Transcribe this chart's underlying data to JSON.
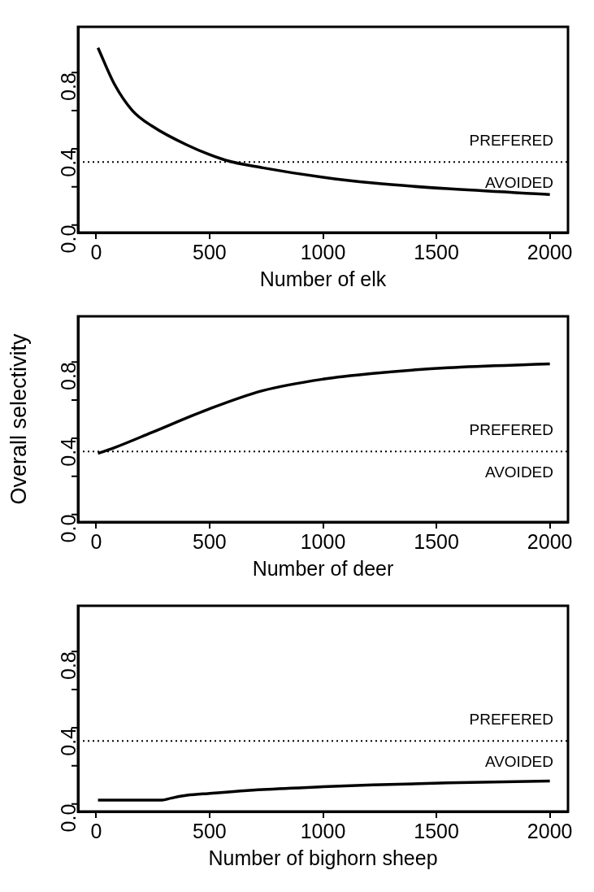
{
  "chart_data": [
    {
      "type": "line",
      "xlabel": "Number of elk",
      "x": [
        8,
        80,
        160,
        245,
        400,
        570,
        735,
        1000,
        1220,
        1550,
        2000
      ],
      "series": [
        {
          "color": "#000000",
          "values": [
            0.93,
            0.74,
            0.6,
            0.52,
            0.42,
            0.34,
            0.3,
            0.25,
            0.22,
            0.19,
            0.16
          ]
        }
      ],
      "xlim": [
        -80,
        2080
      ],
      "ylim": [
        -0.04,
        1.04
      ],
      "xticks": [
        0,
        500,
        1000,
        1500,
        2000
      ],
      "yticks": [
        {
          "value": 0,
          "label": "0.0"
        },
        {
          "value": 0.2,
          "label": null
        },
        {
          "value": 0.4,
          "label": "0.4"
        },
        {
          "value": 0.6,
          "label": null
        },
        {
          "value": 0.8,
          "label": "0.8"
        }
      ],
      "ref_lines": [
        {
          "axis": "y",
          "value": 0.33,
          "line_style": "dotted",
          "color": "#000000"
        }
      ],
      "annotations": [
        "PREFERED",
        "AVOIDED"
      ],
      "marker": "none",
      "grid": false,
      "legend": false
    },
    {
      "type": "line",
      "xlabel": "Number of deer",
      "ylabel": "Overall selectivity",
      "x": [
        8,
        80,
        245,
        490,
        735,
        1000,
        1220,
        1550,
        2000
      ],
      "series": [
        {
          "color": "#000000",
          "values": [
            0.32,
            0.35,
            0.43,
            0.55,
            0.65,
            0.71,
            0.74,
            0.77,
            0.79
          ]
        }
      ],
      "xlim": [
        -80,
        2080
      ],
      "ylim": [
        -0.04,
        1.04
      ],
      "xticks": [
        0,
        500,
        1000,
        1500,
        2000
      ],
      "yticks": [
        {
          "value": 0,
          "label": "0.0"
        },
        {
          "value": 0.2,
          "label": null
        },
        {
          "value": 0.4,
          "label": "0.4"
        },
        {
          "value": 0.6,
          "label": null
        },
        {
          "value": 0.8,
          "label": "0.8"
        }
      ],
      "ref_lines": [
        {
          "axis": "y",
          "value": 0.33,
          "line_style": "dotted",
          "color": "#000000"
        }
      ],
      "annotations": [
        "PREFERED",
        "AVOIDED"
      ],
      "marker": "none",
      "grid": false,
      "legend": false
    },
    {
      "type": "line",
      "xlabel": "Number of bighorn sheep",
      "x": [
        8,
        150,
        290,
        330,
        400,
        500,
        735,
        1000,
        1220,
        1550,
        2000
      ],
      "series": [
        {
          "color": "#000000",
          "values": [
            0.02,
            0.02,
            0.02,
            0.03,
            0.045,
            0.055,
            0.075,
            0.09,
            0.1,
            0.11,
            0.12
          ]
        }
      ],
      "xlim": [
        -80,
        2080
      ],
      "ylim": [
        -0.04,
        1.04
      ],
      "xticks": [
        0,
        500,
        1000,
        1500,
        2000
      ],
      "yticks": [
        {
          "value": 0,
          "label": "0.0"
        },
        {
          "value": 0.2,
          "label": null
        },
        {
          "value": 0.4,
          "label": "0.4"
        },
        {
          "value": 0.6,
          "label": null
        },
        {
          "value": 0.8,
          "label": "0.8"
        }
      ],
      "ref_lines": [
        {
          "axis": "y",
          "value": 0.33,
          "line_style": "dotted",
          "color": "#000000"
        }
      ],
      "annotations": [
        "PREFERED",
        "AVOIDED"
      ],
      "marker": "none",
      "grid": false,
      "legend": false
    }
  ]
}
